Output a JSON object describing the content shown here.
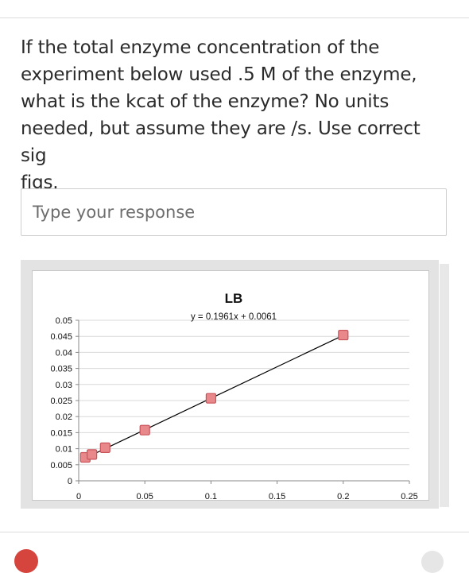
{
  "question": {
    "lines": [
      "If the total enzyme concentration of the",
      "experiment below used .5 M of the enzyme,",
      "what is the kcat of the enzyme? No units",
      "needed, but assume they are /s. Use correct sig",
      "figs."
    ]
  },
  "response": {
    "placeholder": "Type your response",
    "value": ""
  },
  "chart_data": {
    "type": "scatter",
    "title": "LB",
    "trendline_equation": "y = 0.1961x + 0.0061",
    "trendline": {
      "slope": 0.1961,
      "intercept": 0.0061
    },
    "xlim": [
      0,
      0.25
    ],
    "ylim": [
      0,
      0.05
    ],
    "x_ticks": [
      0,
      0.05,
      0.1,
      0.15,
      0.2,
      0.25
    ],
    "x_tick_labels": [
      "0",
      "0.05",
      "0.1",
      "0.15",
      "0.2",
      "0.25"
    ],
    "y_ticks": [
      0,
      0.005,
      0.01,
      0.015,
      0.02,
      0.025,
      0.03,
      0.035,
      0.04,
      0.045,
      0.05
    ],
    "y_tick_labels": [
      "0",
      "0.005",
      "0.01",
      "0.015",
      "0.02",
      "0.025",
      "0.03",
      "0.035",
      "0.04",
      "0.045",
      "0.05"
    ],
    "grid": true,
    "points": [
      {
        "x": 0.005,
        "y": 0.0073
      },
      {
        "x": 0.01,
        "y": 0.0082
      },
      {
        "x": 0.02,
        "y": 0.0103
      },
      {
        "x": 0.05,
        "y": 0.0158
      },
      {
        "x": 0.1,
        "y": 0.0257
      },
      {
        "x": 0.2,
        "y": 0.0454
      }
    ],
    "colors": {
      "marker_fill": "#e8888a",
      "marker_stroke": "#c9535a",
      "trendline": "#000000",
      "grid": "#d9d9d9"
    }
  }
}
